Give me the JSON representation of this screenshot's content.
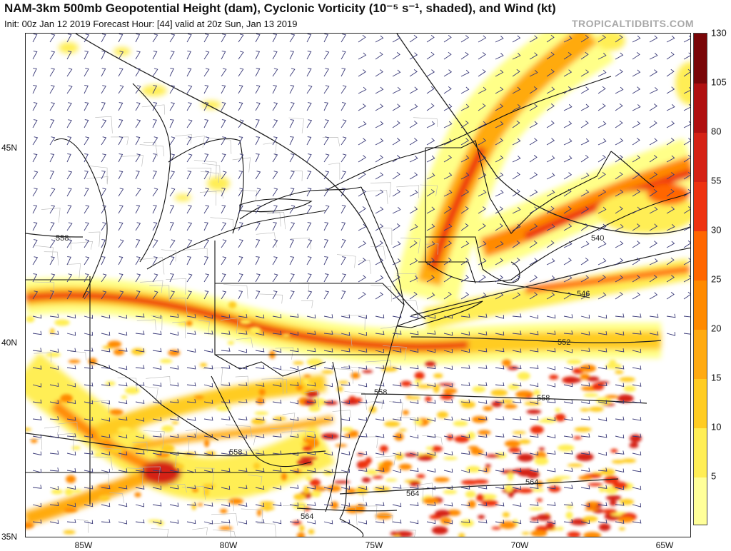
{
  "header": {
    "title": "NAM-3km 500mb Geopotential Height (dam), Cyclonic Vorticity (10⁻⁵ s⁻¹, shaded), and Wind (kt)",
    "subtitle": "Init: 00z Jan 12 2019   Forecast Hour: [44]   valid at 20z Sun, Jan 13 2019",
    "brand": "TROPICALTIDBITS.COM"
  },
  "axes": {
    "lat_labels": [
      "45N",
      "40N",
      "35N"
    ],
    "lon_labels": [
      "85W",
      "80W",
      "75W",
      "70W",
      "65W"
    ]
  },
  "contours": {
    "labels": [
      "558",
      "540",
      "546",
      "552",
      "558",
      "558",
      "558",
      "564",
      "564",
      "564"
    ]
  },
  "colorbar": {
    "levels": [
      1,
      5,
      10,
      15,
      20,
      25,
      30,
      55,
      80,
      105,
      130
    ],
    "tick_labels": [
      "5",
      "10",
      "15",
      "20",
      "25",
      "30",
      "55",
      "80",
      "105",
      "130"
    ],
    "colors": [
      "#ffff99",
      "#ffee55",
      "#ffcc22",
      "#ffaa11",
      "#ff8a00",
      "#ff6600",
      "#ee3311",
      "#d52215",
      "#b01010",
      "#7a0608"
    ]
  },
  "style": {
    "barb_color": "#3a3a78",
    "coast_color": "#111111",
    "county_color": "#b8b8b8",
    "contour_color": "#222222"
  }
}
